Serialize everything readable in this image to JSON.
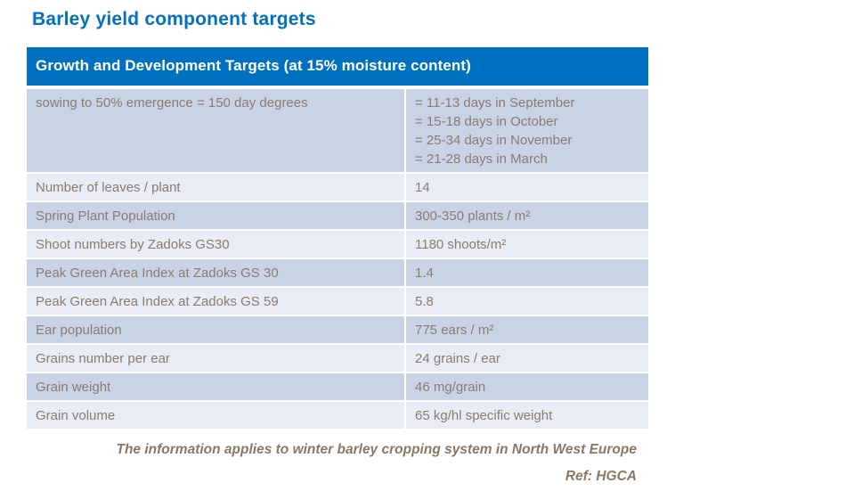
{
  "slide": {
    "title": "Barley yield component targets"
  },
  "table": {
    "header": "Growth and Development Targets (at 15% moisture content)",
    "rows": [
      {
        "label": "sowing to 50% emergence = 150 day degrees",
        "value": "= 11-13 days  in September\n= 15-18 days in October\n= 25-34 days in November\n= 21-28 days in March"
      },
      {
        "label": "Number of leaves / plant",
        "value": "14"
      },
      {
        "label": "Spring Plant Population",
        "value": "300-350 plants / m²"
      },
      {
        "label": "Shoot numbers by Zadoks GS30",
        "value": "1180 shoots/m²"
      },
      {
        "label": "Peak Green Area Index at Zadoks GS 30",
        "value": "1.4"
      },
      {
        "label": "Peak Green Area Index at Zadoks GS 59",
        "value": "5.8"
      },
      {
        "label": "Ear population",
        "value": "775 ears / m²"
      },
      {
        "label": "Grains number per ear",
        "value": "24 grains / ear"
      },
      {
        "label": "Grain weight",
        "value": "46 mg/grain"
      },
      {
        "label": "Grain volume",
        "value": "65 kg/hl specific weight"
      }
    ]
  },
  "footer": {
    "note": "The information applies to winter barley cropping system in North West Europe",
    "reference": "Ref: HGCA"
  },
  "colors": {
    "accent_blue": "#0070C0",
    "header_text": "#FFFFFF",
    "row_dark": "#C9D3E6",
    "row_light": "#E8ECF4",
    "cell_text": "#8C7C6F",
    "footer_text": "#8A7867"
  }
}
